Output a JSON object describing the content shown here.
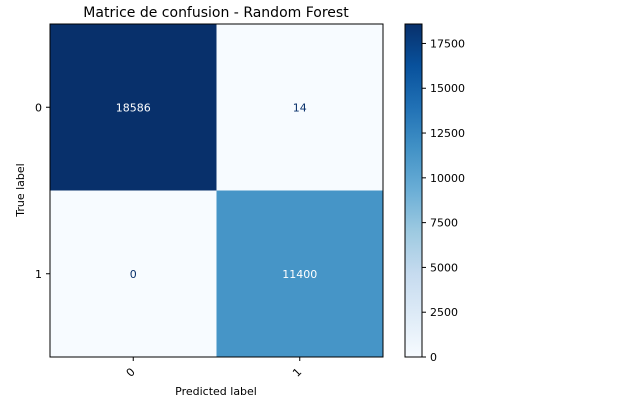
{
  "chart_data": {
    "type": "heatmap",
    "title": "Matrice de confusion - Random Forest",
    "xlabel": "Predicted label",
    "ylabel": "True label",
    "x_categories": [
      "0",
      "1"
    ],
    "y_categories": [
      "0",
      "1"
    ],
    "matrix": [
      [
        18586,
        14
      ],
      [
        0,
        11400
      ]
    ],
    "colormap": "Blues",
    "colorbar": {
      "range": [
        0,
        18586
      ],
      "ticks": [
        0,
        2500,
        5000,
        7500,
        10000,
        12500,
        15000,
        17500
      ]
    },
    "grid": false
  }
}
